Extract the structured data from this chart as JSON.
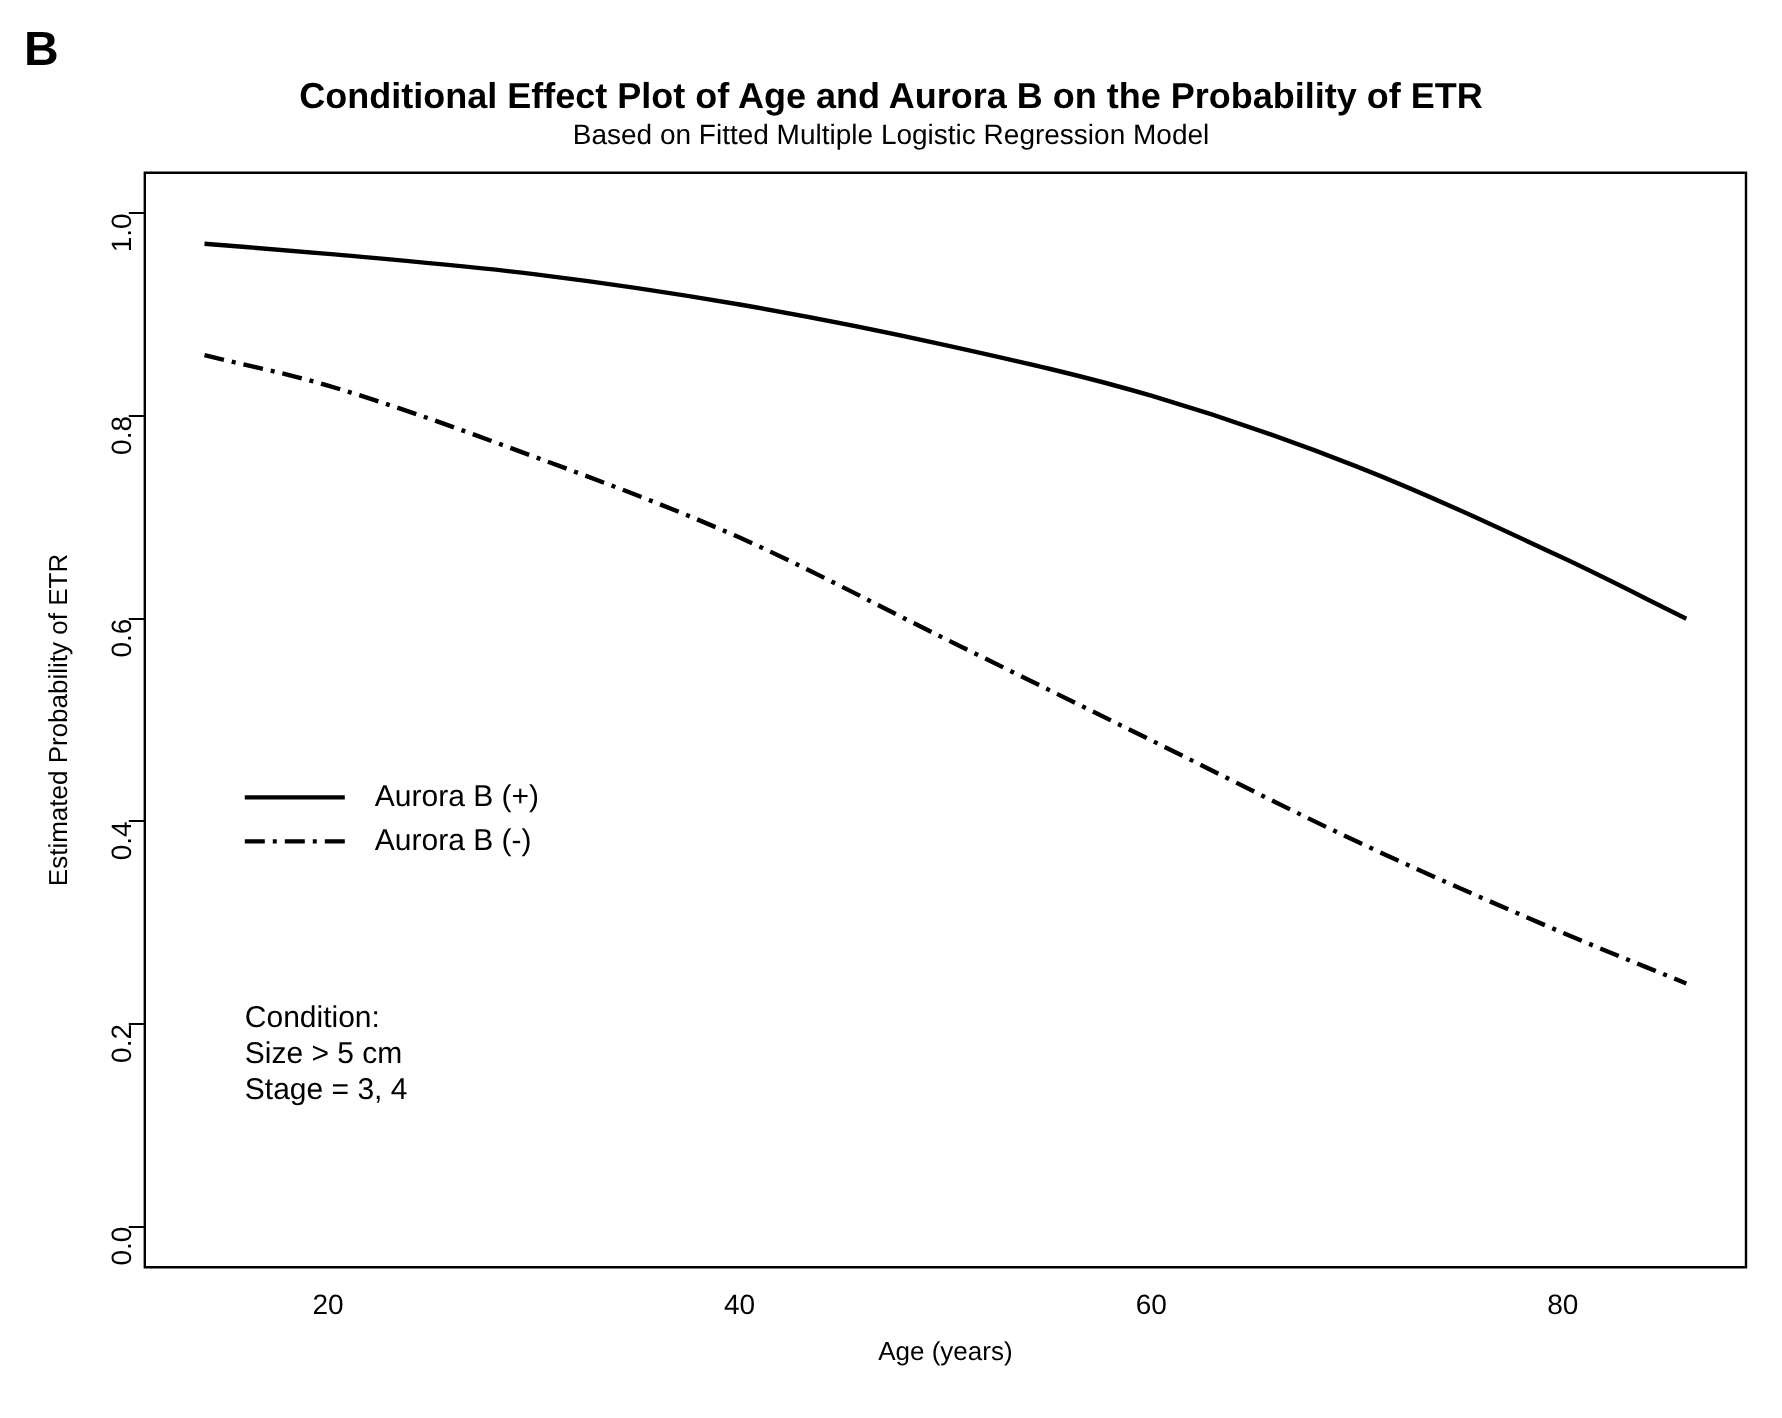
{
  "chart_data": {
    "type": "line",
    "title": "Conditional Effect Plot of Age and Aurora B on the Probability of ETR",
    "subtitle": "Based on Fitted Multiple Logistic Regression Model",
    "xlabel": "Age (years)",
    "ylabel": "Estimated Probability of ETR",
    "x": [
      14,
      20,
      30,
      40,
      50,
      60,
      70,
      80,
      86
    ],
    "series": [
      {
        "name": "Aurora B (+)",
        "color": "#000000",
        "line_style": "solid",
        "values": [
          0.97,
          0.96,
          0.94,
          0.91,
          0.87,
          0.82,
          0.75,
          0.66,
          0.6
        ]
      },
      {
        "name": "Aurora B (-)",
        "color": "#000000",
        "line_style": "dashed",
        "values": [
          0.86,
          0.83,
          0.76,
          0.68,
          0.58,
          0.48,
          0.38,
          0.29,
          0.24
        ]
      }
    ],
    "xlim": [
      11.1,
      88.9
    ],
    "xticks": [
      20,
      40,
      60,
      80
    ],
    "ylim": [
      -0.04,
      1.04
    ],
    "yticks": [
      {
        "value": 0,
        "label": "0.0"
      },
      {
        "value": 0.2,
        "label": "0.2"
      },
      {
        "value": 0.4,
        "label": "0.4"
      },
      {
        "value": 0.6,
        "label": "0.6"
      },
      {
        "value": 0.8,
        "label": "0.8"
      },
      {
        "value": 1,
        "label": "1.0"
      }
    ],
    "grid": false,
    "legend": "left",
    "marker": "none",
    "annotations": [
      "B",
      "Condition:\nSize > 5 cm\nStage = 3, 4"
    ]
  }
}
